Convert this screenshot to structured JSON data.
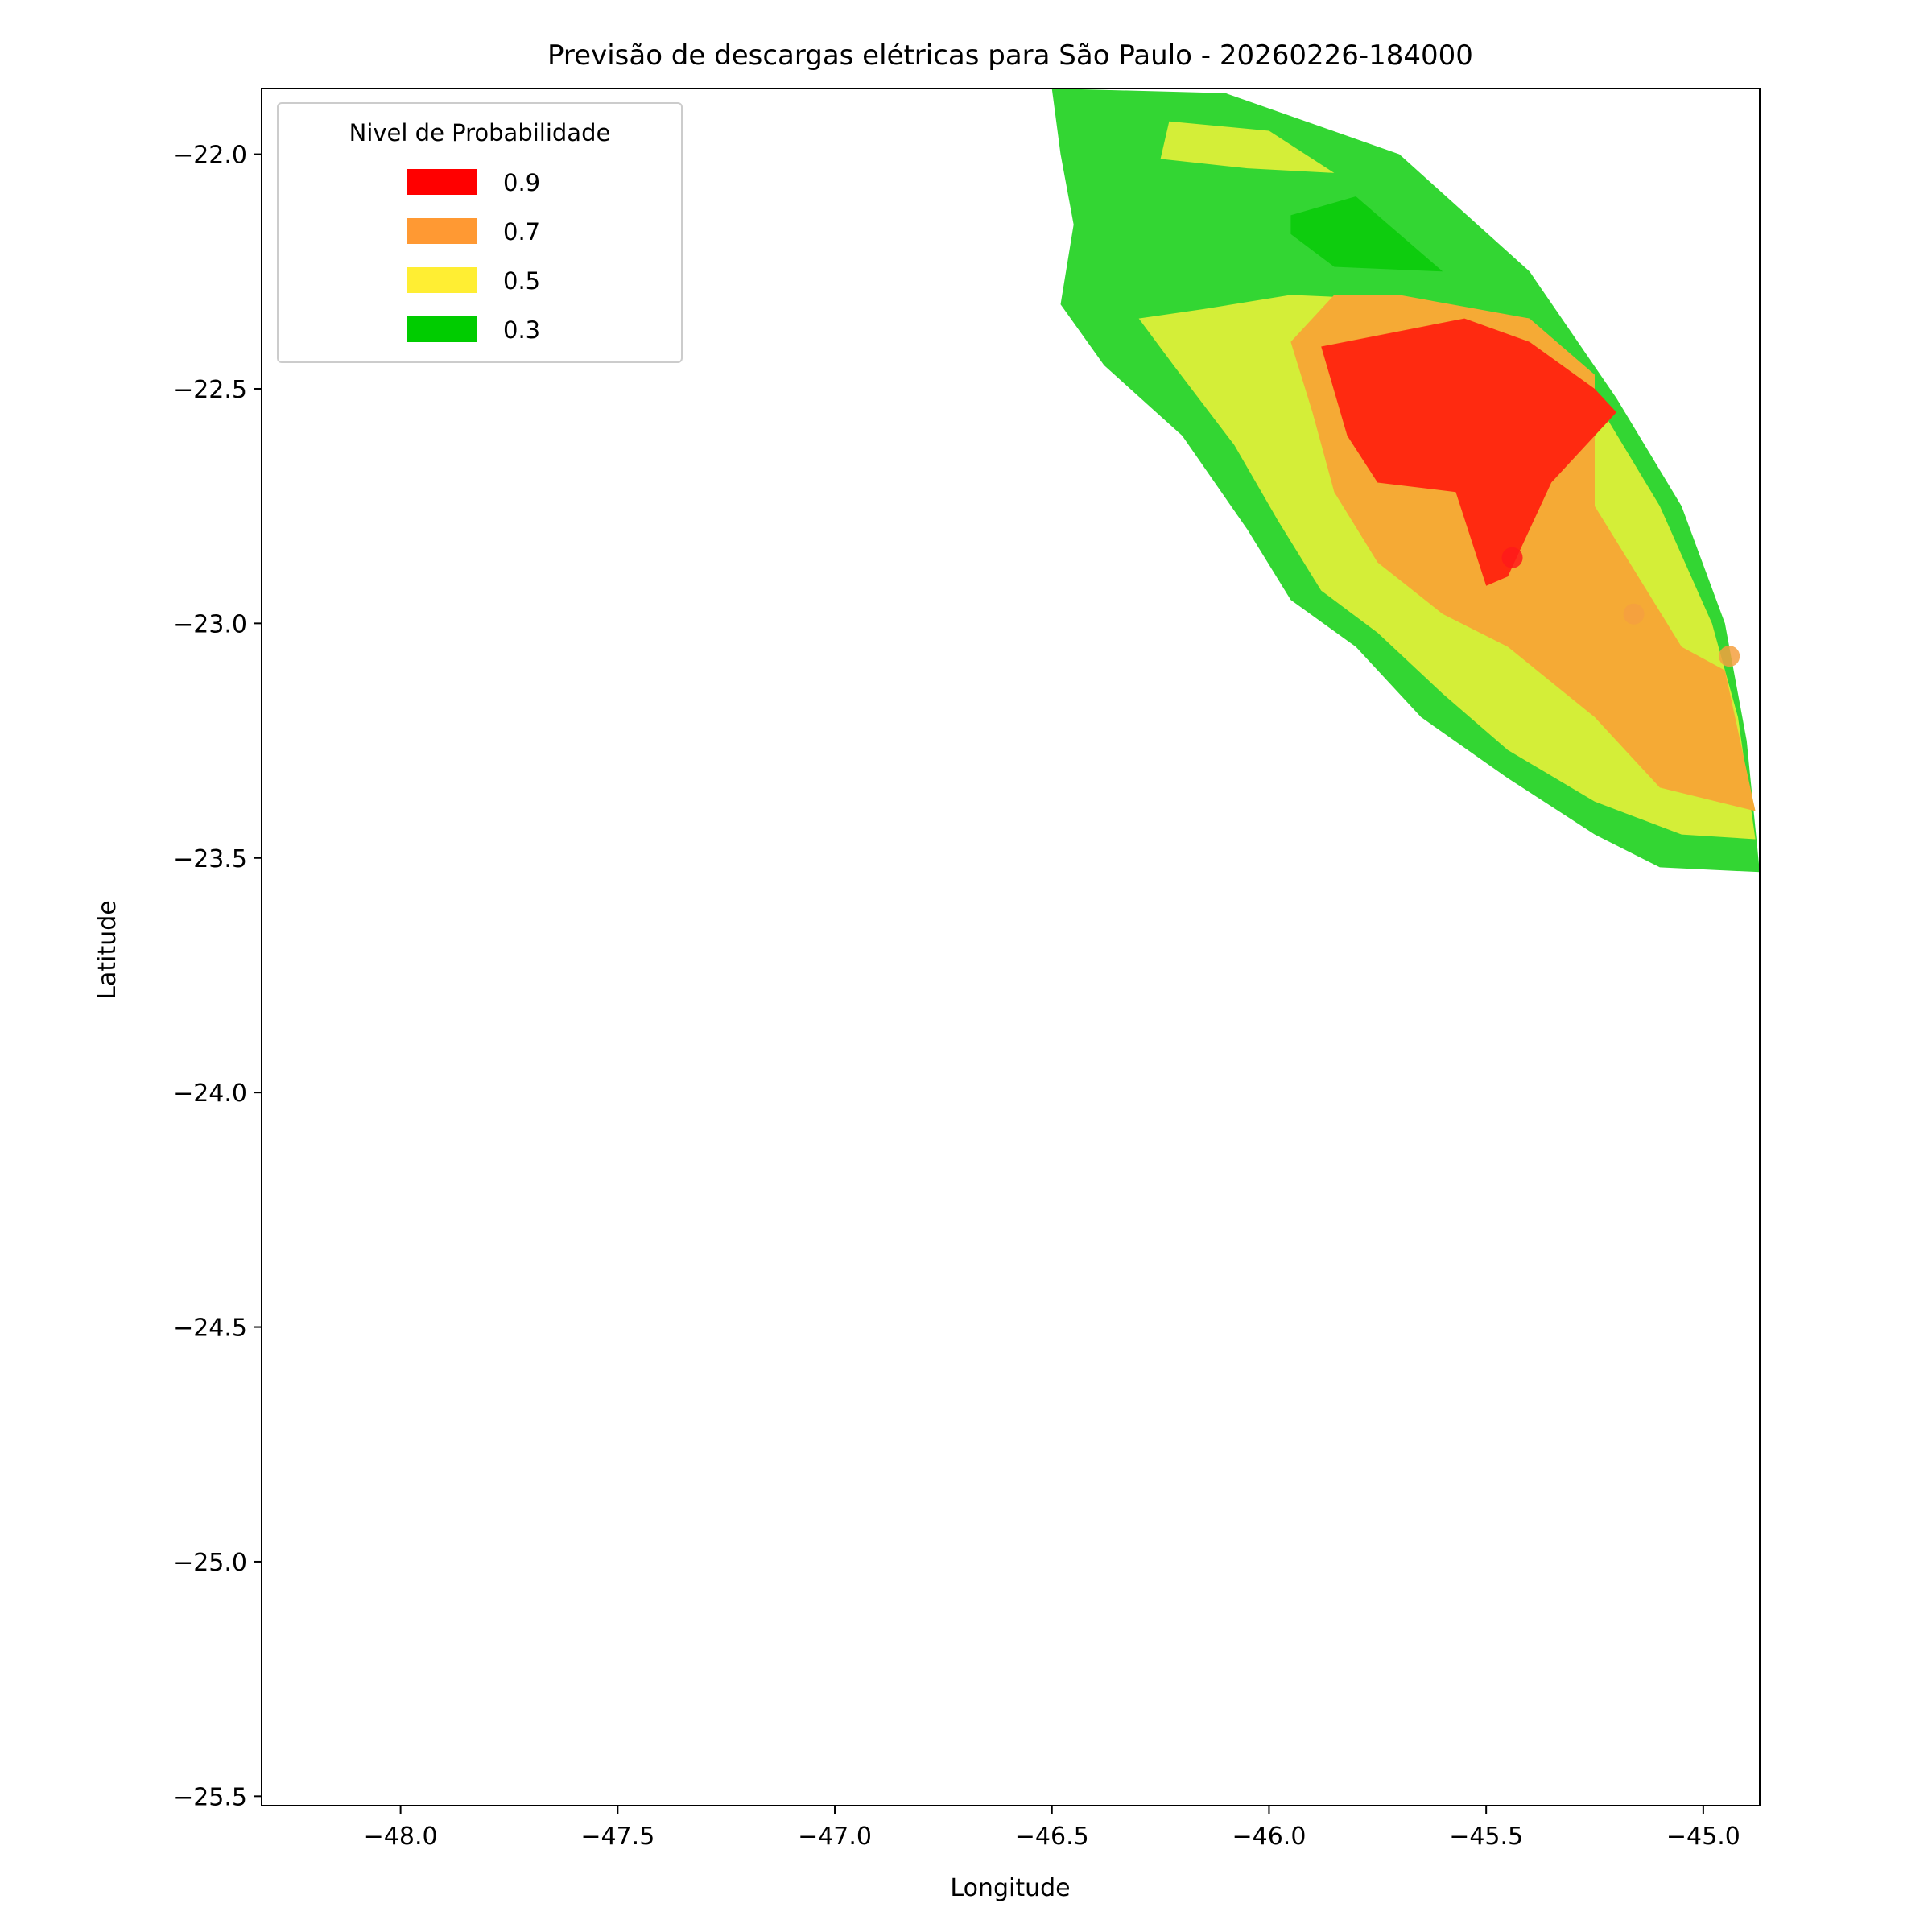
{
  "chart_data": {
    "type": "contour-map",
    "title": "Previsão de descargas elétricas para São Paulo - 20260226-184000",
    "xlabel": "Longitude",
    "ylabel": "Latitude",
    "xlim": [
      -48.32,
      -44.87
    ],
    "ylim": [
      -25.52,
      -21.86
    ],
    "x_ticks": [
      -48.0,
      -47.5,
      -47.0,
      -46.5,
      -46.0,
      -45.5,
      -45.0
    ],
    "x_tick_labels": [
      "−48.0",
      "−47.5",
      "−47.0",
      "−46.5",
      "−46.0",
      "−45.5",
      "−45.0"
    ],
    "y_ticks": [
      -22.0,
      -22.5,
      -23.0,
      -23.5,
      -24.0,
      -24.5,
      -25.0,
      -25.5
    ],
    "y_tick_labels": [
      "−22.0",
      "−22.5",
      "−23.0",
      "−23.5",
      "−24.0",
      "−24.5",
      "−25.0",
      "−25.5"
    ],
    "grid": false,
    "legend": {
      "title": "Nivel de Probabilidade",
      "placement": "top-left",
      "entries": [
        {
          "label": "0.9",
          "color": "#ff0000"
        },
        {
          "label": "0.7",
          "color": "#ff9933"
        },
        {
          "label": "0.5",
          "color": "#ffee33"
        },
        {
          "label": "0.3",
          "color": "#00cc00"
        }
      ]
    },
    "fill_colors": {
      "low": "#33d633",
      "high_green": "#0ecc0e",
      "yellow": "#d4ee38",
      "orange": "#f5aa35",
      "red": "#ff2a10"
    },
    "regions": [
      {
        "level": "low",
        "color": "#33d633",
        "points": [
          [
            -46.5,
            -21.86
          ],
          [
            -46.1,
            -21.87
          ],
          [
            -45.7,
            -22.0
          ],
          [
            -45.4,
            -22.25
          ],
          [
            -45.2,
            -22.52
          ],
          [
            -45.05,
            -22.75
          ],
          [
            -44.95,
            -23.0
          ],
          [
            -44.9,
            -23.25
          ],
          [
            -44.87,
            -23.53
          ],
          [
            -45.1,
            -23.52
          ],
          [
            -45.25,
            -23.45
          ],
          [
            -45.45,
            -23.33
          ],
          [
            -45.65,
            -23.2
          ],
          [
            -45.8,
            -23.05
          ],
          [
            -45.95,
            -22.95
          ],
          [
            -46.05,
            -22.8
          ],
          [
            -46.2,
            -22.6
          ],
          [
            -46.38,
            -22.45
          ],
          [
            -46.48,
            -22.32
          ],
          [
            -46.45,
            -22.15
          ],
          [
            -46.48,
            -22.0
          ]
        ]
      },
      {
        "level": "yellow",
        "color": "#d4ee38",
        "points": [
          [
            -46.23,
            -21.93
          ],
          [
            -46.0,
            -21.95
          ],
          [
            -45.85,
            -22.04
          ],
          [
            -46.05,
            -22.03
          ],
          [
            -46.25,
            -22.01
          ]
        ]
      },
      {
        "level": "high_green",
        "color": "#0ecc0e",
        "points": [
          [
            -45.95,
            -22.13
          ],
          [
            -45.8,
            -22.09
          ],
          [
            -45.6,
            -22.25
          ],
          [
            -45.85,
            -22.24
          ],
          [
            -45.95,
            -22.17
          ]
        ]
      },
      {
        "level": "yellow",
        "color": "#d4ee38",
        "points": [
          [
            -45.95,
            -22.3
          ],
          [
            -45.7,
            -22.31
          ],
          [
            -45.4,
            -22.35
          ],
          [
            -45.25,
            -22.52
          ],
          [
            -45.1,
            -22.75
          ],
          [
            -44.98,
            -23.0
          ],
          [
            -44.92,
            -23.2
          ],
          [
            -44.88,
            -23.46
          ],
          [
            -45.05,
            -23.45
          ],
          [
            -45.25,
            -23.38
          ],
          [
            -45.45,
            -23.27
          ],
          [
            -45.6,
            -23.15
          ],
          [
            -45.75,
            -23.02
          ],
          [
            -45.88,
            -22.93
          ],
          [
            -45.98,
            -22.78
          ],
          [
            -46.08,
            -22.62
          ],
          [
            -46.22,
            -22.45
          ],
          [
            -46.3,
            -22.35
          ],
          [
            -46.15,
            -22.33
          ]
        ]
      },
      {
        "level": "orange",
        "color": "#f5aa35",
        "points": [
          [
            -45.85,
            -22.3
          ],
          [
            -45.7,
            -22.3
          ],
          [
            -45.4,
            -22.35
          ],
          [
            -45.25,
            -22.47
          ],
          [
            -45.25,
            -22.75
          ],
          [
            -45.15,
            -22.9
          ],
          [
            -45.05,
            -23.05
          ],
          [
            -44.95,
            -23.1
          ],
          [
            -44.88,
            -23.4
          ],
          [
            -45.1,
            -23.35
          ],
          [
            -45.25,
            -23.2
          ],
          [
            -45.45,
            -23.05
          ],
          [
            -45.6,
            -22.98
          ],
          [
            -45.75,
            -22.87
          ],
          [
            -45.85,
            -22.72
          ],
          [
            -45.9,
            -22.55
          ],
          [
            -45.95,
            -22.4
          ]
        ]
      },
      {
        "level": "red",
        "color": "#ff2a10",
        "points": [
          [
            -45.88,
            -22.41
          ],
          [
            -45.55,
            -22.35
          ],
          [
            -45.4,
            -22.4
          ],
          [
            -45.25,
            -22.5
          ],
          [
            -45.2,
            -22.55
          ],
          [
            -45.35,
            -22.7
          ],
          [
            -45.4,
            -22.8
          ],
          [
            -45.45,
            -22.9
          ],
          [
            -45.5,
            -22.92
          ],
          [
            -45.57,
            -22.72
          ],
          [
            -45.75,
            -22.7
          ],
          [
            -45.82,
            -22.6
          ]
        ]
      }
    ],
    "points": [
      {
        "x": -45.44,
        "y": -22.86,
        "color": "#ff1a1a"
      },
      {
        "x": -45.16,
        "y": -22.98,
        "color": "#f5a040"
      },
      {
        "x": -44.94,
        "y": -23.07,
        "color": "#f5a040"
      }
    ]
  }
}
